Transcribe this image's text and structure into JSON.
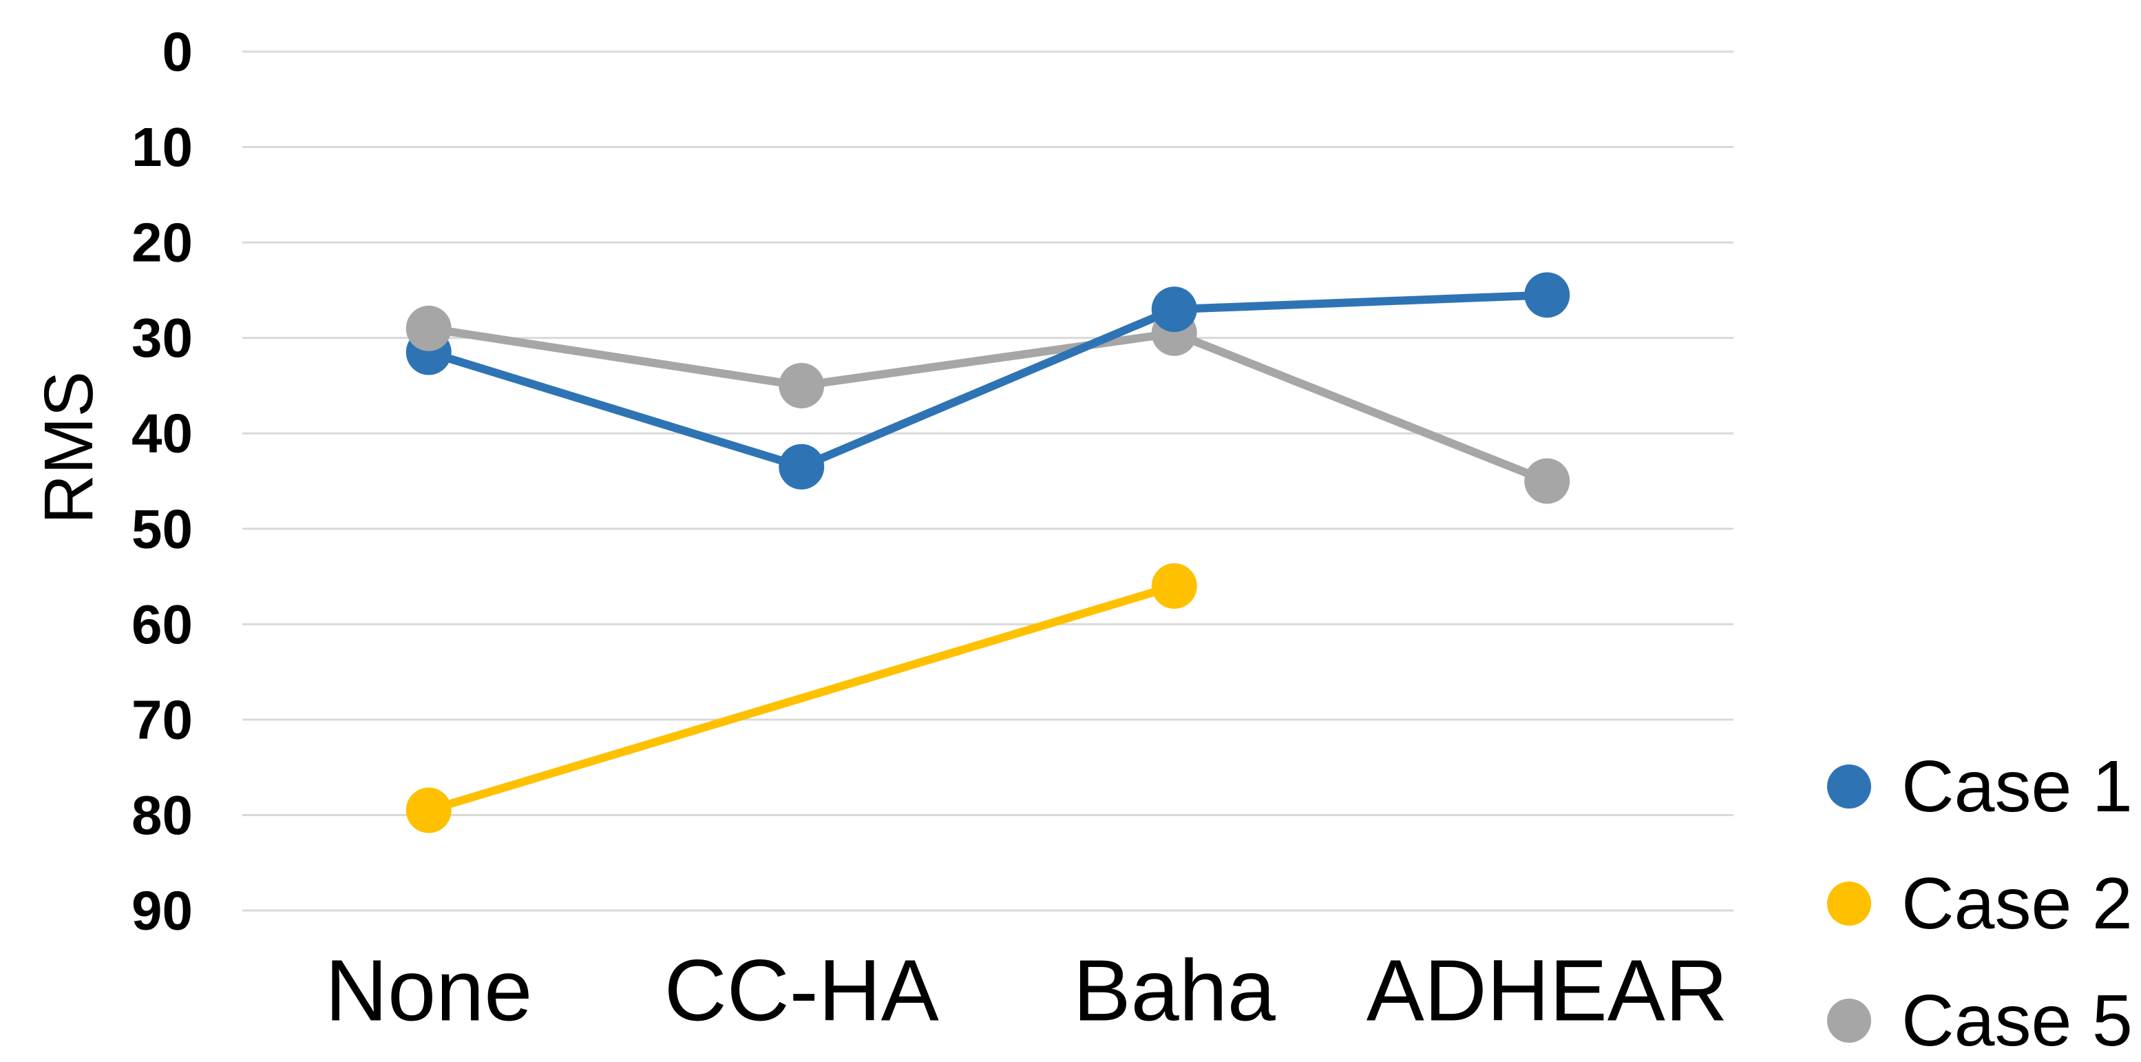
{
  "chart_data": {
    "type": "line",
    "title": "",
    "xlabel": "",
    "ylabel": "RMS",
    "categories": [
      "None",
      "CC-HA",
      "Baha",
      "ADHEAR"
    ],
    "y_axis": {
      "min": 0,
      "max": 90,
      "tick_step": 10,
      "direction": "reversed (0 at top, 90 at bottom)",
      "ticks": [
        0,
        10,
        20,
        30,
        40,
        50,
        60,
        70,
        80,
        90
      ]
    },
    "grid": true,
    "legend": {
      "position": "bottom-right",
      "marker_shape": "circle"
    },
    "series": [
      {
        "name": "Case 1",
        "color": "#2E74B5",
        "values": [
          31.5,
          43.5,
          27,
          25.5
        ]
      },
      {
        "name": "Case 2",
        "color": "#FFC000",
        "values": [
          79.5,
          null,
          56,
          null
        ]
      },
      {
        "name": "Case 5",
        "color": "#A6A6A6",
        "values": [
          29,
          35,
          29.5,
          45
        ]
      }
    ],
    "colors": {
      "gridline": "#D9D9D9",
      "text": "#000000",
      "background": "#FFFFFF"
    }
  }
}
